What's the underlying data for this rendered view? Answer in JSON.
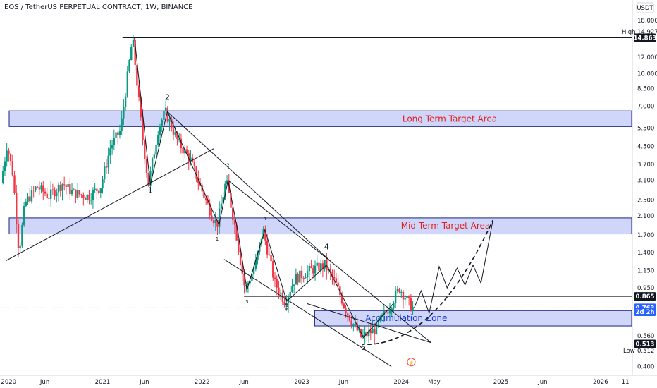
{
  "header": {
    "title": "EOS / TetherUS PERPETUAL CONTRACT, 1W, BINANCE"
  },
  "price_axis": {
    "currency": "USDT"
  },
  "chart_data": {
    "type": "candlestick",
    "title": "EOS / TetherUS PERPETUAL CONTRACT, 1W, BINANCE",
    "y_scale": "log",
    "ylim": [
      0.38,
      20
    ],
    "y_ticks": [
      18.0,
      14.927,
      12.0,
      10.0,
      8.5,
      7.0,
      5.5,
      4.5,
      3.7,
      3.1,
      2.5,
      2.1,
      1.7,
      1.4,
      1.15,
      0.95,
      0.865,
      0.763,
      0.56,
      0.513,
      0.512,
      0.4
    ],
    "x_ticks": [
      "2020",
      "Jun",
      "2021",
      "Jun",
      "2022",
      "Jun",
      "2023",
      "Jun",
      "2024",
      "May",
      "2025",
      "Jun",
      "2026",
      "11"
    ],
    "badges": [
      {
        "label": "14.863",
        "value": 14.863,
        "bg": "#131722"
      },
      {
        "label": "0.865",
        "value": 0.865,
        "bg": "#131722"
      },
      {
        "label": "0.763",
        "value": 0.763,
        "bg": "#2962ff"
      },
      {
        "label": "2d 2h",
        "value": 0.73,
        "bg": "#2962ff"
      },
      {
        "label": "0.513",
        "value": 0.513,
        "bg": "#131722"
      }
    ],
    "high": {
      "label": "High",
      "value": 14.927
    },
    "low": {
      "label": "Low",
      "value": 0.512
    },
    "zones": [
      {
        "label": "Long Term Target Area",
        "top": 6.65,
        "bottom": 5.6,
        "label_color": "#e02020"
      },
      {
        "label": "Mid Term Target Area",
        "top": 2.05,
        "bottom": 1.72,
        "label_color": "#e02020"
      },
      {
        "label": "Accumulation Zone",
        "top": 0.74,
        "bottom": 0.625,
        "label_color": "#1e3ad4"
      }
    ],
    "levels": [
      14.863,
      0.865,
      0.513
    ],
    "wave_labels": [
      {
        "text": "2",
        "t": 2021.65,
        "v": 7.5,
        "size": "large"
      },
      {
        "text": "1",
        "t": 2021.48,
        "v": 2.7,
        "size": "large"
      },
      {
        "text": "2",
        "t": 2022.26,
        "v": 3.6,
        "size": "small"
      },
      {
        "text": "1",
        "t": 2022.15,
        "v": 1.6,
        "size": "small"
      },
      {
        "text": "4",
        "t": 2022.63,
        "v": 2.0,
        "size": "small"
      },
      {
        "text": "3",
        "t": 2022.45,
        "v": 0.8,
        "size": "small"
      },
      {
        "text": "3",
        "t": 2022.85,
        "v": 0.75,
        "size": "large"
      },
      {
        "text": "4",
        "t": 2023.25,
        "v": 1.45,
        "size": "large"
      },
      {
        "text": "5",
        "t": 2023.62,
        "v": 0.48,
        "size": "large"
      }
    ],
    "anchors": [
      [
        2020.0,
        3.0
      ],
      [
        2020.06,
        4.6
      ],
      [
        2020.12,
        3.3
      ],
      [
        2020.18,
        1.4
      ],
      [
        2020.24,
        2.4
      ],
      [
        2020.36,
        2.9
      ],
      [
        2020.48,
        2.6
      ],
      [
        2020.62,
        3.0
      ],
      [
        2020.72,
        2.7
      ],
      [
        2020.88,
        2.6
      ],
      [
        2021.0,
        2.9
      ],
      [
        2021.1,
        4.5
      ],
      [
        2021.2,
        5.4
      ],
      [
        2021.32,
        14.86
      ],
      [
        2021.42,
        5.0
      ],
      [
        2021.48,
        2.95
      ],
      [
        2021.58,
        5.5
      ],
      [
        2021.65,
        6.6
      ],
      [
        2021.78,
        4.7
      ],
      [
        2021.9,
        3.9
      ],
      [
        2022.0,
        2.9
      ],
      [
        2022.12,
        2.1
      ],
      [
        2022.17,
        1.9
      ],
      [
        2022.26,
        3.1
      ],
      [
        2022.36,
        1.75
      ],
      [
        2022.45,
        0.93
      ],
      [
        2022.55,
        1.2
      ],
      [
        2022.63,
        1.8
      ],
      [
        2022.75,
        1.0
      ],
      [
        2022.85,
        0.82
      ],
      [
        2022.95,
        1.05
      ],
      [
        2023.1,
        1.15
      ],
      [
        2023.25,
        1.22
      ],
      [
        2023.36,
        1.0
      ],
      [
        2023.46,
        0.75
      ],
      [
        2023.52,
        0.66
      ],
      [
        2023.62,
        0.55
      ],
      [
        2023.75,
        0.6
      ],
      [
        2023.92,
        0.8
      ],
      [
        2024.0,
        0.95
      ],
      [
        2024.1,
        0.8
      ],
      [
        2024.13,
        0.763
      ]
    ],
    "projection_path": [
      [
        2024.13,
        0.763
      ],
      [
        2024.2,
        0.92
      ],
      [
        2024.28,
        0.72
      ],
      [
        2024.38,
        1.2
      ],
      [
        2024.46,
        0.95
      ],
      [
        2024.56,
        1.18
      ],
      [
        2024.64,
        0.98
      ],
      [
        2024.72,
        1.22
      ],
      [
        2024.8,
        1.0
      ],
      [
        2024.92,
        2.0
      ]
    ],
    "colors": {
      "up": "#089981",
      "down": "#f23645",
      "zone_fill": "#b7bef7",
      "zone_border": "#1a237e",
      "line": "#131722"
    }
  }
}
